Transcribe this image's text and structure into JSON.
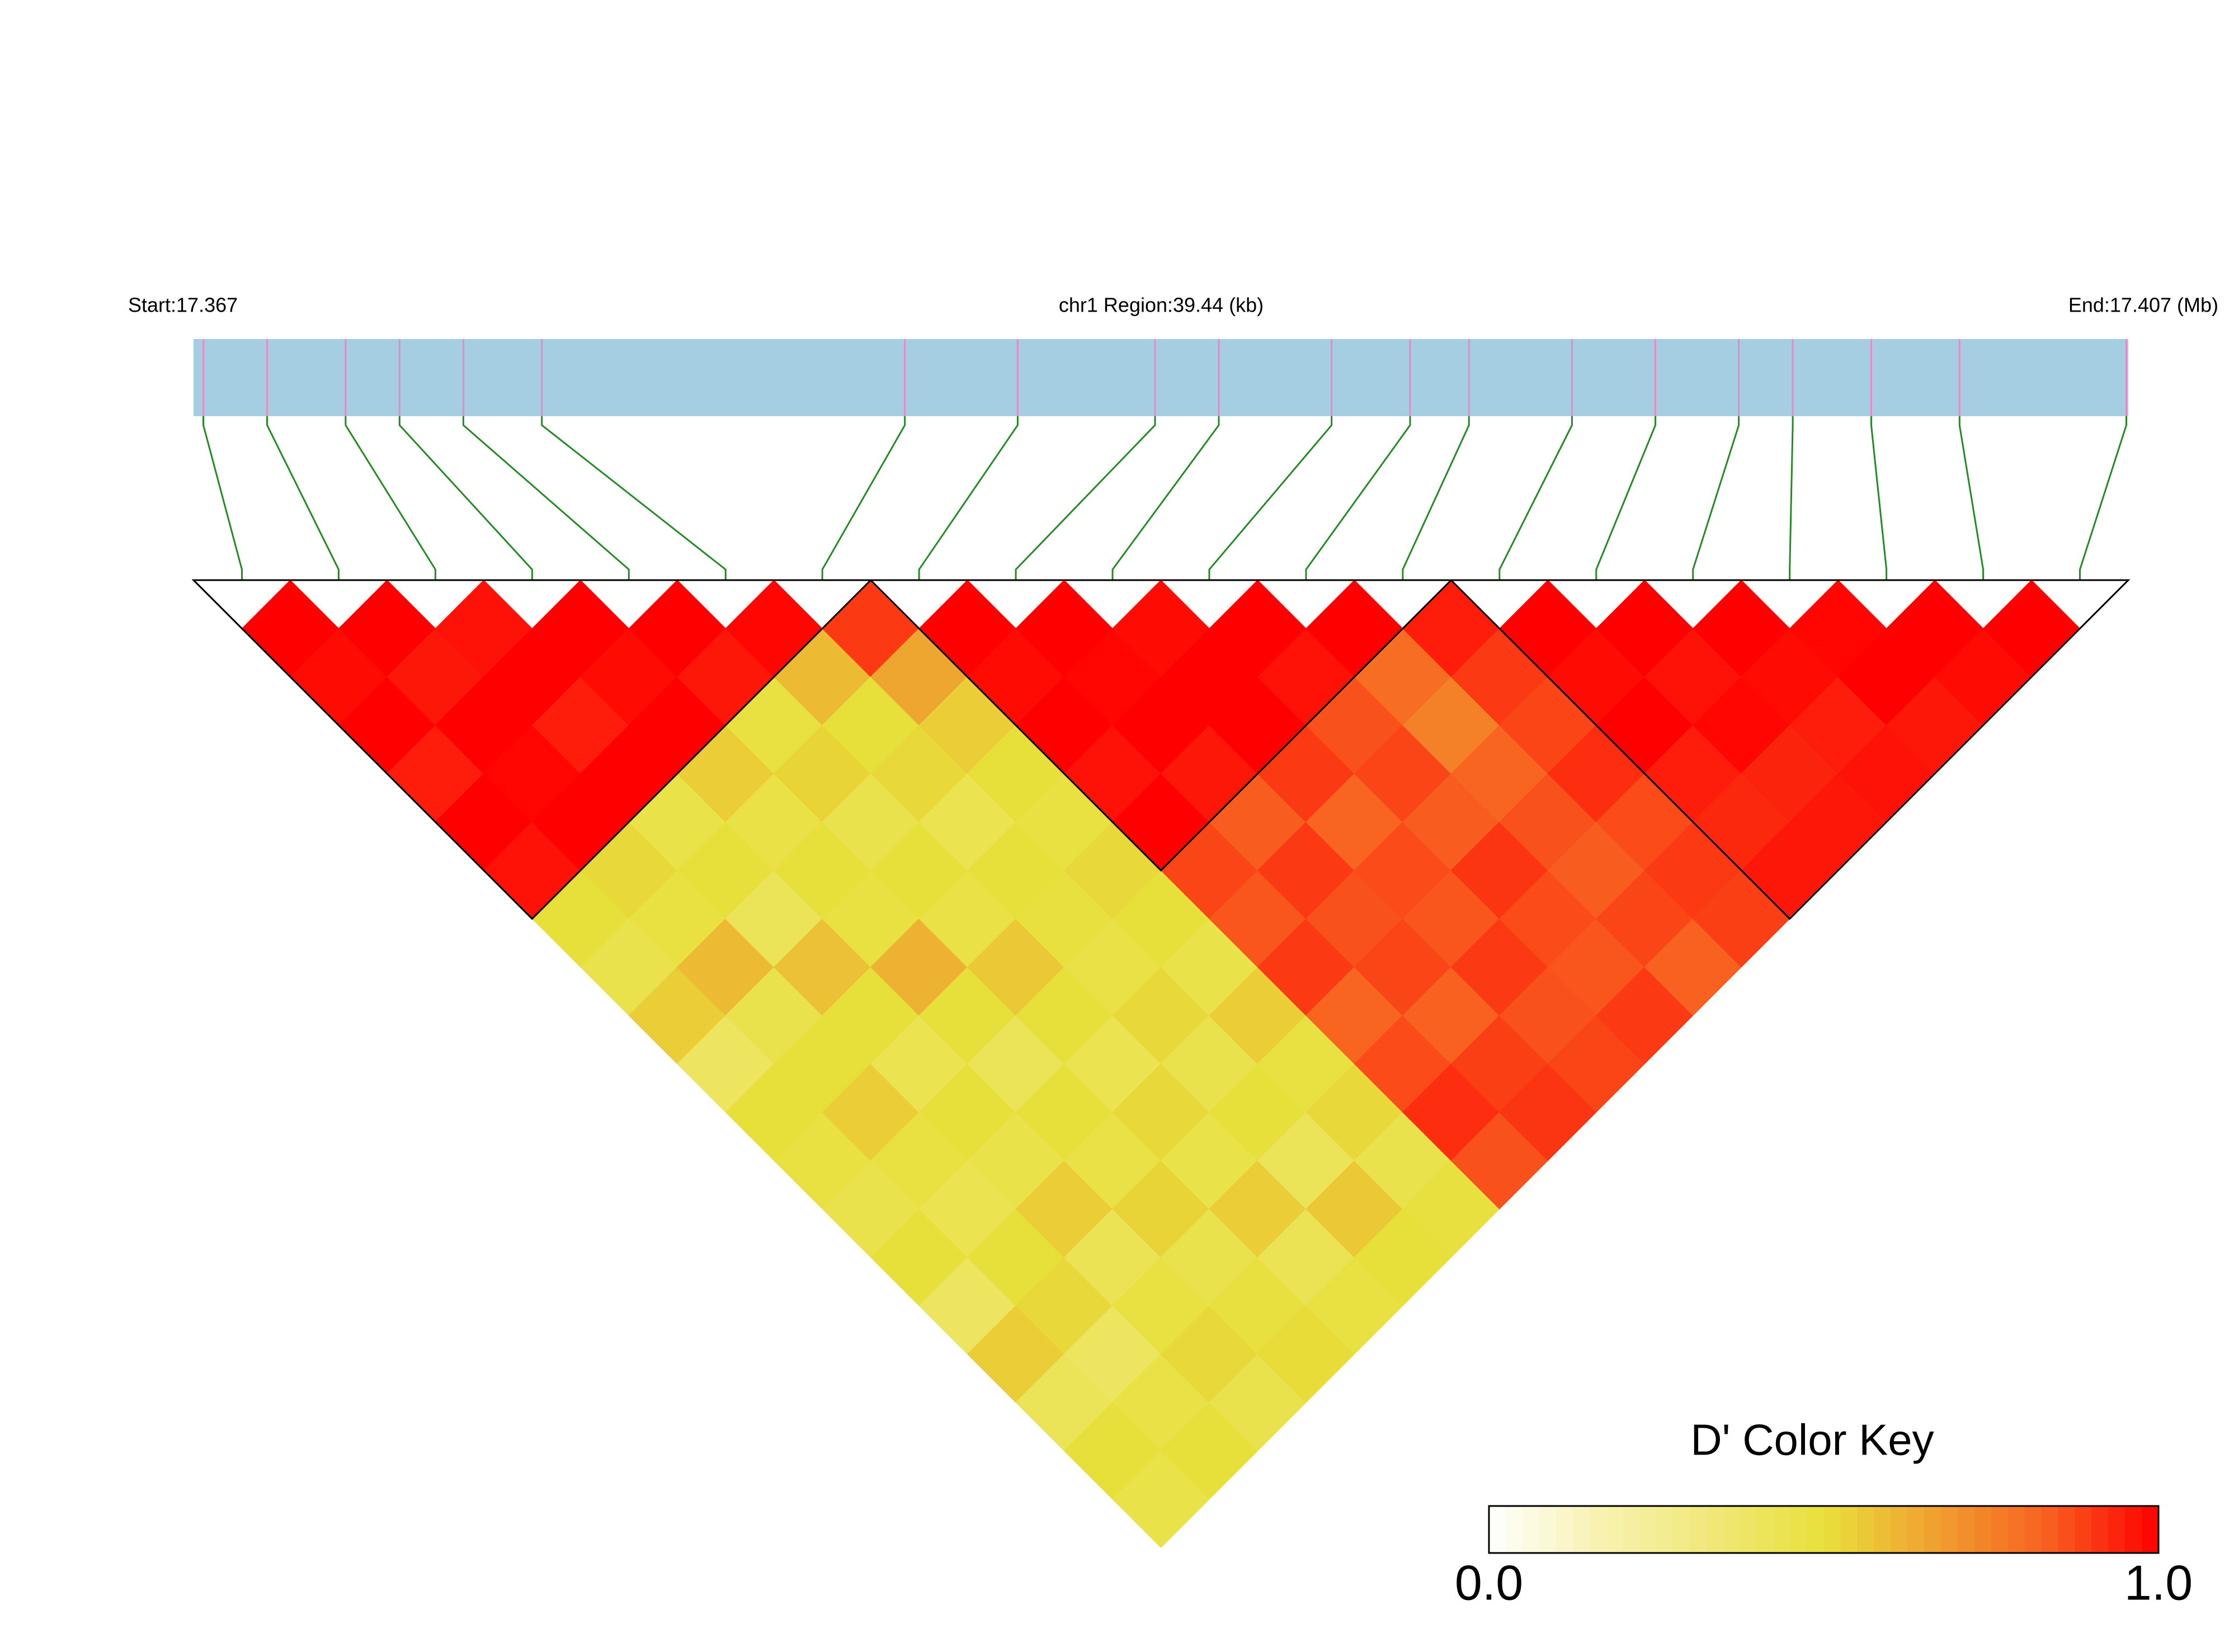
{
  "chart_data": {
    "type": "ld_heatmap",
    "title": "chr1 Region:39.44 (kb)",
    "start_label": "Start:17.367",
    "end_label": "End:17.407 (Mb)",
    "xlim": [
      17.367,
      17.40644
    ],
    "snp_positions": [
      17.3672,
      17.3685,
      17.3701,
      17.3712,
      17.3725,
      17.3741,
      17.3815,
      17.3838,
      17.3866,
      17.3879,
      17.3902,
      17.3918,
      17.393,
      17.3951,
      17.3968,
      17.3985,
      17.3996,
      17.4012,
      17.403,
      17.4064
    ],
    "dprime": [
      [
        1,
        0.98,
        1,
        0.95,
        1,
        0.97,
        0.5,
        0.45,
        0.55,
        0.4,
        0.5,
        0.48,
        0.45,
        0.5,
        0.4,
        0.55,
        0.42,
        0.5,
        0.46
      ],
      [
        1,
        0.96,
        1,
        0.99,
        1,
        0.52,
        0.48,
        0.6,
        0.45,
        0.5,
        0.55,
        0.48,
        0.44,
        0.5,
        0.52,
        0.4,
        0.47,
        0.5
      ],
      [
        0.97,
        1,
        0.95,
        1,
        0.46,
        0.5,
        0.42,
        0.58,
        0.5,
        0.44,
        0.5,
        0.46,
        0.55,
        0.43,
        0.48,
        0.52,
        0.45
      ],
      [
        1,
        0.98,
        1,
        0.55,
        0.47,
        0.5,
        0.48,
        0.62,
        0.5,
        0.42,
        0.5,
        0.47,
        0.53,
        0.45,
        0.49,
        0.51
      ],
      [
        1,
        0.96,
        0.48,
        0.53,
        0.45,
        0.5,
        0.47,
        0.56,
        0.5,
        0.44,
        0.52,
        0.46,
        0.55,
        0.43,
        0.48
      ],
      [
        0.99,
        0.6,
        0.5,
        0.52,
        0.44,
        0.5,
        0.49,
        0.47,
        0.52,
        0.45,
        0.5,
        0.42,
        0.56,
        0.5
      ],
      [
        0.9,
        0.65,
        0.55,
        0.5,
        0.48,
        0.52,
        0.5,
        0.46,
        0.55,
        0.48,
        0.52,
        0.45,
        0.49
      ],
      [
        1,
        0.98,
        1,
        0.97,
        1,
        0.88,
        0.85,
        0.9,
        0.82,
        0.87,
        0.92,
        0.86
      ],
      [
        1,
        0.99,
        1,
        0.96,
        0.84,
        0.9,
        0.86,
        0.88,
        0.83,
        0.89,
        0.91
      ],
      [
        0.98,
        1,
        1,
        0.9,
        0.82,
        0.87,
        0.85,
        0.9,
        0.86,
        0.88
      ],
      [
        1,
        0.97,
        0.86,
        0.88,
        0.84,
        0.91,
        0.87,
        0.85,
        0.9
      ],
      [
        1,
        0.8,
        0.75,
        0.82,
        0.86,
        0.84,
        0.88,
        0.83
      ],
      [
        0.95,
        0.9,
        0.88,
        0.92,
        0.87,
        0.9,
        0.89
      ],
      [
        1,
        0.98,
        1,
        0.95,
        0.93,
        0.96
      ],
      [
        1,
        0.97,
        0.99,
        0.94,
        0.96
      ],
      [
        1,
        0.98,
        0.95,
        0.97
      ],
      [
        0.99,
        1,
        0.96
      ],
      [
        1,
        0.98
      ],
      [
        1
      ]
    ],
    "blocks": [
      [
        0,
        6
      ],
      [
        7,
        12
      ],
      [
        13,
        19
      ]
    ],
    "colormap": [
      "#ffffff",
      "#f8f2b0",
      "#f0e878",
      "#e8e03a",
      "#f0a030",
      "#f86020",
      "#ff0000"
    ],
    "colorbar_title": "D' Color Key",
    "clim": [
      0,
      1
    ],
    "cticks": [
      {
        "value": 0,
        "label": "0.0"
      },
      {
        "value": 1,
        "label": "1.0"
      }
    ],
    "track_color": "#a6cee3",
    "snp_color": "#e78ac3",
    "link_color": "#228b22",
    "block_color": "#000000"
  }
}
